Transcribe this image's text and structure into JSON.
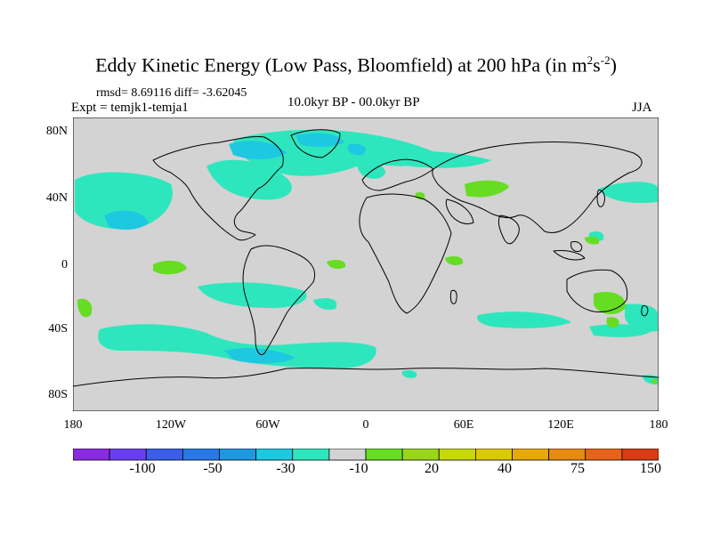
{
  "title": {
    "main": "Eddy Kinetic Energy (Low Pass, Bloomfield) at 200 hPa (in m",
    "unit_sup1": "2",
    "unit_mid": "s",
    "unit_sup2": "-2",
    "close": ")"
  },
  "stats": "rmsd= 8.69116 diff= -3.62045",
  "expt": "Expt = temjk1-temja1",
  "period": "10.0kyr BP - 00.0kyr BP",
  "season": "JJA",
  "map": {
    "lat_labels": [
      "80N",
      "40N",
      "0",
      "40S",
      "80S"
    ],
    "lon_labels": [
      "180",
      "120W",
      "60W",
      "0",
      "60E",
      "120E",
      "180"
    ],
    "background_color": "#d3d3d3",
    "regions": [
      {
        "class": "-10",
        "color": "#2ee6bd"
      },
      {
        "class": "-30",
        "color": "#1ec8e0"
      },
      {
        "class": "20",
        "color": "#66dd22"
      }
    ]
  },
  "colorbar": {
    "colors": [
      "#8a2be2",
      "#6a3ef0",
      "#3a5ee8",
      "#2878e6",
      "#1f98e0",
      "#1ec8e0",
      "#2ee6bd",
      "#d3d3d3",
      "#66dd22",
      "#99d51a",
      "#c8d80f",
      "#dcc80a",
      "#e6a80a",
      "#e68a12",
      "#e6641a",
      "#d83c14"
    ],
    "labels": [
      "-100",
      "-50",
      "-30",
      "-10",
      "20",
      "40",
      "75",
      "150"
    ]
  }
}
